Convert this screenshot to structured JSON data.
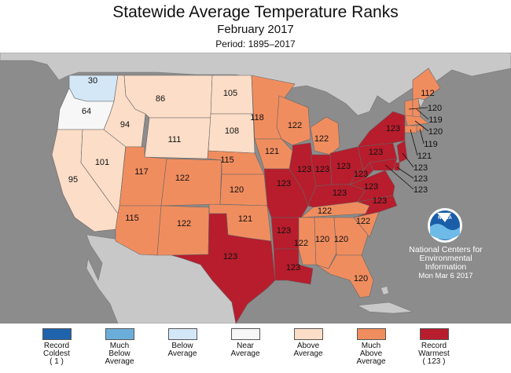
{
  "header": {
    "title": "Statewide Average Temperature Ranks",
    "subtitle": "February 2017",
    "period": "Period: 1895–2017"
  },
  "colors": {
    "ocean": "#8c8c8c",
    "land_outside": "#c8c8c8",
    "record_coldest": "#1f63ad",
    "much_below": "#6caedb",
    "below": "#d4e7f7",
    "near": "#f7f7f7",
    "above": "#fcddc7",
    "much_above": "#f08d5f",
    "record_warmest": "#b71d2c"
  },
  "states": [
    {
      "abbr": "WA",
      "rank": "30",
      "category": "below"
    },
    {
      "abbr": "OR",
      "rank": "64",
      "category": "near"
    },
    {
      "abbr": "CA",
      "rank": "95",
      "category": "above"
    },
    {
      "abbr": "NV",
      "rank": "101",
      "category": "above"
    },
    {
      "abbr": "ID",
      "rank": "94",
      "category": "above"
    },
    {
      "abbr": "MT",
      "rank": "86",
      "category": "above"
    },
    {
      "abbr": "WY",
      "rank": "111",
      "category": "above"
    },
    {
      "abbr": "UT",
      "rank": "117",
      "category": "much_above"
    },
    {
      "abbr": "AZ",
      "rank": "115",
      "category": "much_above"
    },
    {
      "abbr": "CO",
      "rank": "122",
      "category": "much_above"
    },
    {
      "abbr": "NM",
      "rank": "122",
      "category": "much_above"
    },
    {
      "abbr": "ND",
      "rank": "105",
      "category": "above"
    },
    {
      "abbr": "SD",
      "rank": "108",
      "category": "above"
    },
    {
      "abbr": "NE",
      "rank": "115",
      "category": "much_above"
    },
    {
      "abbr": "KS",
      "rank": "120",
      "category": "much_above"
    },
    {
      "abbr": "OK",
      "rank": "121",
      "category": "much_above"
    },
    {
      "abbr": "TX",
      "rank": "123",
      "category": "record_warmest"
    },
    {
      "abbr": "MN",
      "rank": "118",
      "category": "much_above"
    },
    {
      "abbr": "IA",
      "rank": "121",
      "category": "much_above"
    },
    {
      "abbr": "MO",
      "rank": "123",
      "category": "record_warmest"
    },
    {
      "abbr": "AR",
      "rank": "123",
      "category": "record_warmest"
    },
    {
      "abbr": "LA",
      "rank": "123",
      "category": "record_warmest"
    },
    {
      "abbr": "WI",
      "rank": "122",
      "category": "much_above"
    },
    {
      "abbr": "IL",
      "rank": "123",
      "category": "record_warmest"
    },
    {
      "abbr": "MI",
      "rank": "122",
      "category": "much_above"
    },
    {
      "abbr": "IN",
      "rank": "123",
      "category": "record_warmest"
    },
    {
      "abbr": "OH",
      "rank": "123",
      "category": "record_warmest"
    },
    {
      "abbr": "KY",
      "rank": "123",
      "category": "record_warmest"
    },
    {
      "abbr": "TN",
      "rank": "122",
      "category": "much_above"
    },
    {
      "abbr": "MS",
      "rank": "122",
      "category": "much_above"
    },
    {
      "abbr": "AL",
      "rank": "120",
      "category": "much_above"
    },
    {
      "abbr": "GA",
      "rank": "120",
      "category": "much_above"
    },
    {
      "abbr": "FL",
      "rank": "120",
      "category": "much_above"
    },
    {
      "abbr": "SC",
      "rank": "122",
      "category": "much_above"
    },
    {
      "abbr": "NC",
      "rank": "123",
      "category": "record_warmest"
    },
    {
      "abbr": "VA",
      "rank": "123",
      "category": "record_warmest"
    },
    {
      "abbr": "WV",
      "rank": "123",
      "category": "record_warmest"
    },
    {
      "abbr": "PA",
      "rank": "123",
      "category": "record_warmest"
    },
    {
      "abbr": "NY",
      "rank": "123",
      "category": "record_warmest"
    },
    {
      "abbr": "ME",
      "rank": "112",
      "category": "much_above"
    },
    {
      "abbr": "VT",
      "rank": "120",
      "category": "much_above"
    },
    {
      "abbr": "NH",
      "rank": "119",
      "category": "much_above"
    },
    {
      "abbr": "MA",
      "rank": "120",
      "category": "much_above"
    },
    {
      "abbr": "RI",
      "rank": "119",
      "category": "much_above"
    },
    {
      "abbr": "CT",
      "rank": "121",
      "category": "much_above"
    },
    {
      "abbr": "NJ",
      "rank": "123",
      "category": "record_warmest"
    },
    {
      "abbr": "DE",
      "rank": "123",
      "category": "record_warmest"
    },
    {
      "abbr": "MD",
      "rank": "123",
      "category": "record_warmest"
    }
  ],
  "legend": [
    {
      "key": "record_coldest",
      "lines": [
        "Record",
        "Coldest",
        "( 1 )"
      ]
    },
    {
      "key": "much_below",
      "lines": [
        "Much",
        "Below",
        "Average"
      ]
    },
    {
      "key": "below",
      "lines": [
        "Below",
        "Average",
        ""
      ]
    },
    {
      "key": "near",
      "lines": [
        "Near",
        "Average",
        ""
      ]
    },
    {
      "key": "above",
      "lines": [
        "Above",
        "Average",
        ""
      ]
    },
    {
      "key": "much_above",
      "lines": [
        "Much",
        "Above",
        "Average"
      ]
    },
    {
      "key": "record_warmest",
      "lines": [
        "Record",
        "Warmest",
        "( 123 )"
      ]
    }
  ],
  "logo": {
    "icon": "noaa-logo-icon",
    "text": "NOAA"
  },
  "credit": {
    "line1": "National Centers for",
    "line2": "Environmental",
    "line3": "Information",
    "date": "Mon Mar  6 2017"
  }
}
